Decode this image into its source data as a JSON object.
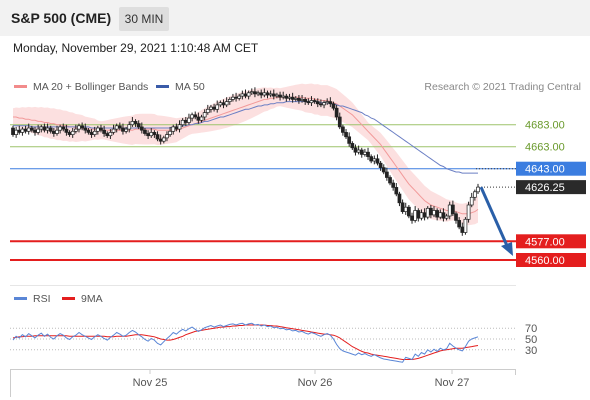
{
  "header": {
    "title": "S&P 500 (CME)",
    "interval": "30 MIN"
  },
  "datetime": "Monday, November 29, 2021 1:10:48 AM CET",
  "legend": [
    {
      "label": "MA 20 + Bollinger Bands",
      "color": "#f28b8b"
    },
    {
      "label": "MA 50",
      "color": "#3a5ba8"
    }
  ],
  "copyright": "Research © 2021 Trading Central",
  "colors": {
    "up_candle": "#ffffff",
    "down_candle": "#222222",
    "bollinger": "#fbd3d3",
    "ma20": "#f29a9a",
    "ma50": "#6b7fc4",
    "green_level": "#9dc46c",
    "blue_level": "#3b7de0",
    "red_level": "#e41e1e",
    "rsi": "#5a86d6",
    "rsi_ma": "#e41e1e"
  },
  "chart_data": {
    "type": "candlestick",
    "ylim": [
      4540,
      4710
    ],
    "x_labels": [
      "Nov 25",
      "Nov 26",
      "Nov 27"
    ],
    "levels": [
      {
        "value": 4683,
        "label": "4683.00",
        "style": "green"
      },
      {
        "value": 4663,
        "label": "4663.00",
        "style": "green"
      },
      {
        "value": 4643,
        "label": "4643.00",
        "style": "blue"
      },
      {
        "value": 4626.25,
        "label": "4626.25",
        "style": "last"
      },
      {
        "value": 4577,
        "label": "4577.00",
        "style": "red"
      },
      {
        "value": 4560,
        "label": "4560.00",
        "style": "red"
      }
    ],
    "close": [
      4674,
      4678,
      4676,
      4679,
      4677,
      4680,
      4678,
      4676,
      4679,
      4681,
      4678,
      4680,
      4677,
      4675,
      4678,
      4681,
      4679,
      4676,
      4674,
      4677,
      4679,
      4682,
      4680,
      4678,
      4676,
      4674,
      4677,
      4680,
      4678,
      4675,
      4673,
      4676,
      4679,
      4682,
      4680,
      4677,
      4679,
      4683,
      4686,
      4684,
      4681,
      4678,
      4675,
      4673,
      4676,
      4674,
      4670,
      4668,
      4671,
      4674,
      4677,
      4681,
      4679,
      4683,
      4687,
      4685,
      4689,
      4692,
      4690,
      4687,
      4690,
      4694,
      4697,
      4699,
      4697,
      4701,
      4703,
      4701,
      4704,
      4706,
      4708,
      4707,
      4709,
      4711,
      4709,
      4712,
      4713,
      4711,
      4712,
      4710,
      4712,
      4710,
      4711,
      4709,
      4710,
      4708,
      4709,
      4707,
      4708,
      4706,
      4707,
      4705,
      4706,
      4704,
      4703,
      4705,
      4704,
      4702,
      4701,
      4703,
      4704,
      4702,
      4698,
      4690,
      4681,
      4676,
      4672,
      4666,
      4662,
      4658,
      4660,
      4656,
      4658,
      4654,
      4650,
      4652,
      4648,
      4644,
      4640,
      4635,
      4630,
      4626,
      4620,
      4612,
      4604,
      4608,
      4600,
      4596,
      4605,
      4598,
      4603,
      4599,
      4607,
      4601,
      4605,
      4599,
      4603,
      4598,
      4600,
      4610,
      4602,
      4596,
      4590,
      4585,
      4597,
      4610,
      4617,
      4622,
      4626.25
    ],
    "open": [
      4680,
      4674,
      4678,
      4676,
      4679,
      4677,
      4680,
      4678,
      4676,
      4679,
      4681,
      4678,
      4680,
      4677,
      4675,
      4678,
      4681,
      4679,
      4676,
      4674,
      4677,
      4679,
      4682,
      4680,
      4678,
      4676,
      4674,
      4677,
      4680,
      4678,
      4675,
      4673,
      4676,
      4679,
      4682,
      4680,
      4677,
      4679,
      4683,
      4686,
      4684,
      4681,
      4678,
      4675,
      4673,
      4676,
      4674,
      4670,
      4668,
      4671,
      4674,
      4677,
      4681,
      4679,
      4683,
      4687,
      4685,
      4689,
      4692,
      4690,
      4687,
      4690,
      4694,
      4697,
      4699,
      4697,
      4701,
      4703,
      4701,
      4704,
      4706,
      4708,
      4707,
      4709,
      4711,
      4709,
      4712,
      4713,
      4711,
      4712,
      4710,
      4712,
      4710,
      4711,
      4709,
      4710,
      4708,
      4709,
      4707,
      4708,
      4706,
      4707,
      4705,
      4706,
      4704,
      4703,
      4705,
      4704,
      4702,
      4701,
      4703,
      4704,
      4702,
      4698,
      4690,
      4681,
      4676,
      4672,
      4666,
      4662,
      4658,
      4660,
      4656,
      4658,
      4654,
      4650,
      4652,
      4648,
      4644,
      4640,
      4635,
      4630,
      4626,
      4620,
      4612,
      4604,
      4608,
      4600,
      4596,
      4605,
      4598,
      4603,
      4599,
      4607,
      4601,
      4605,
      4599,
      4603,
      4598,
      4600,
      4610,
      4602,
      4596,
      4590,
      4585,
      4597,
      4610,
      4617,
      4622
    ],
    "ma20": [
      4690,
      4690,
      4689,
      4689,
      4688,
      4688,
      4687,
      4687,
      4686,
      4686,
      4685,
      4685,
      4684,
      4684,
      4683,
      4683,
      4682,
      4682,
      4681,
      4681,
      4680,
      4680,
      4680,
      4679,
      4679,
      4679,
      4679,
      4678,
      4678,
      4678,
      4678,
      4678,
      4678,
      4678,
      4678,
      4678,
      4678,
      4678,
      4678,
      4679,
      4679,
      4679,
      4679,
      4679,
      4679,
      4679,
      4678,
      4678,
      4678,
      4678,
      4678,
      4678,
      4678,
      4679,
      4680,
      4681,
      4682,
      4683,
      4684,
      4685,
      4686,
      4687,
      4688,
      4689,
      4690,
      4691,
      4692,
      4693,
      4694,
      4695,
      4696,
      4697,
      4698,
      4699,
      4700,
      4701,
      4702,
      4703,
      4704,
      4705,
      4706,
      4706,
      4707,
      4707,
      4708,
      4708,
      4708,
      4708,
      4708,
      4708,
      4708,
      4708,
      4708,
      4707,
      4707,
      4707,
      4706,
      4706,
      4705,
      4705,
      4705,
      4704,
      4703,
      4702,
      4700,
      4698,
      4696,
      4694,
      4692,
      4689,
      4686,
      4683,
      4680,
      4677,
      4674,
      4671,
      4668,
      4665,
      4661,
      4657,
      4653,
      4649,
      4645,
      4641,
      4637,
      4633,
      4629,
      4626,
      4623,
      4620,
      4617,
      4614,
      4612,
      4610,
      4609,
      4608,
      4607,
      4606,
      4605,
      4605,
      4605,
      4604,
      4603,
      4602,
      4602,
      4602,
      4603,
      4604,
      4606
    ],
    "ma50": [
      4682,
      4682,
      4682,
      4682,
      4682,
      4682,
      4681,
      4681,
      4681,
      4681,
      4681,
      4681,
      4681,
      4681,
      4681,
      4681,
      4681,
      4681,
      4681,
      4681,
      4681,
      4681,
      4681,
      4681,
      4681,
      4680,
      4680,
      4680,
      4680,
      4680,
      4680,
      4680,
      4680,
      4680,
      4680,
      4680,
      4680,
      4680,
      4680,
      4680,
      4680,
      4680,
      4680,
      4680,
      4680,
      4680,
      4680,
      4680,
      4680,
      4680,
      4680,
      4681,
      4681,
      4681,
      4682,
      4682,
      4683,
      4683,
      4684,
      4684,
      4685,
      4686,
      4686,
      4687,
      4688,
      4689,
      4690,
      4690,
      4691,
      4692,
      4693,
      4694,
      4695,
      4696,
      4697,
      4697,
      4698,
      4699,
      4700,
      4700,
      4701,
      4701,
      4702,
      4702,
      4703,
      4703,
      4703,
      4704,
      4704,
      4704,
      4704,
      4704,
      4704,
      4704,
      4704,
      4704,
      4704,
      4704,
      4703,
      4703,
      4703,
      4702,
      4702,
      4701,
      4700,
      4700,
      4699,
      4698,
      4697,
      4696,
      4695,
      4694,
      4692,
      4691,
      4689,
      4688,
      4686,
      4684,
      4682,
      4680,
      4678,
      4676,
      4674,
      4672,
      4670,
      4668,
      4666,
      4664,
      4662,
      4660,
      4658,
      4656,
      4654,
      4652,
      4650,
      4648,
      4646,
      4645,
      4643,
      4642,
      4641,
      4640,
      4640,
      4639,
      4639,
      4639,
      4639,
      4639,
      4639
    ],
    "rsi": {
      "ylim": [
        0,
        100
      ],
      "ticks": [
        70,
        50,
        30
      ],
      "legend": [
        {
          "label": "RSI",
          "color": "#5a86d6"
        },
        {
          "label": "9MA",
          "color": "#e41e1e"
        }
      ],
      "rsi": [
        48,
        55,
        52,
        58,
        54,
        60,
        56,
        52,
        57,
        61,
        55,
        59,
        53,
        50,
        56,
        60,
        57,
        52,
        49,
        54,
        57,
        62,
        58,
        55,
        52,
        49,
        54,
        58,
        55,
        51,
        48,
        53,
        57,
        62,
        59,
        55,
        57,
        62,
        66,
        63,
        58,
        54,
        49,
        46,
        51,
        48,
        42,
        39,
        45,
        51,
        56,
        62,
        59,
        64,
        68,
        65,
        69,
        72,
        68,
        64,
        67,
        71,
        73,
        75,
        72,
        74,
        76,
        73,
        75,
        77,
        78,
        76,
        78,
        79,
        76,
        78,
        79,
        76,
        77,
        74,
        76,
        73,
        74,
        71,
        72,
        69,
        70,
        67,
        68,
        65,
        66,
        63,
        64,
        61,
        59,
        62,
        60,
        57,
        55,
        58,
        60,
        57,
        50,
        40,
        32,
        28,
        26,
        24,
        22,
        20,
        24,
        21,
        23,
        20,
        18,
        21,
        18,
        15,
        13,
        12,
        11,
        10,
        9,
        8,
        7,
        16,
        14,
        12,
        22,
        18,
        25,
        22,
        30,
        26,
        31,
        27,
        33,
        30,
        32,
        42,
        37,
        33,
        30,
        28,
        36,
        46,
        50,
        52,
        54
      ],
      "ma": [
        52,
        53,
        54,
        54,
        55,
        55,
        55,
        56,
        56,
        56,
        56,
        56,
        56,
        56,
        56,
        56,
        56,
        56,
        55,
        55,
        55,
        55,
        55,
        55,
        55,
        55,
        55,
        55,
        55,
        55,
        54,
        54,
        54,
        55,
        55,
        55,
        55,
        56,
        57,
        58,
        58,
        58,
        57,
        56,
        55,
        54,
        52,
        50,
        49,
        48,
        48,
        49,
        51,
        53,
        55,
        58,
        60,
        62,
        64,
        65,
        66,
        67,
        68,
        69,
        70,
        71,
        72,
        72,
        73,
        73,
        74,
        74,
        75,
        75,
        76,
        76,
        76,
        76,
        76,
        76,
        76,
        75,
        75,
        74,
        74,
        73,
        72,
        71,
        70,
        69,
        68,
        67,
        66,
        65,
        64,
        63,
        62,
        61,
        60,
        59,
        59,
        58,
        57,
        55,
        52,
        48,
        44,
        40,
        36,
        33,
        30,
        27,
        25,
        24,
        22,
        21,
        20,
        19,
        18,
        17,
        16,
        15,
        14,
        13,
        12,
        12,
        12,
        12,
        13,
        14,
        16,
        18,
        20,
        22,
        24,
        26,
        28,
        29,
        30,
        31,
        32,
        33,
        33,
        33,
        34,
        35,
        36,
        37,
        38
      ]
    }
  }
}
